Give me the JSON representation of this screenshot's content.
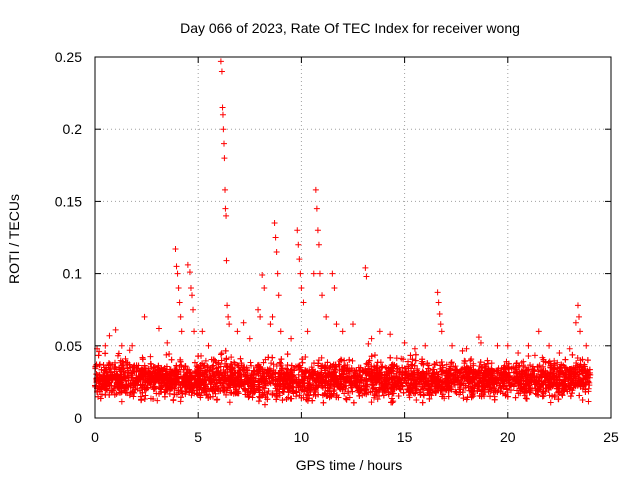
{
  "chart_data": {
    "type": "scatter",
    "title": "Day 066 of 2023, Rate Of TEC Index for receiver wong",
    "xlabel": "GPS time / hours",
    "ylabel": "ROTI / TECUs",
    "xlim": [
      0,
      25
    ],
    "ylim": [
      0,
      0.25
    ],
    "xticks": [
      0,
      5,
      10,
      15,
      20,
      25
    ],
    "yticks": [
      0,
      0.05,
      0.1,
      0.15,
      0.2,
      0.25
    ],
    "xtick_labels": [
      "0",
      "5",
      "10",
      "15",
      "20",
      "25"
    ],
    "ytick_labels": [
      "0",
      "0.05",
      "0.1",
      "0.15",
      "0.2",
      "0.25"
    ],
    "grid": true,
    "marker": "+",
    "color": "#ff0000",
    "series": [
      {
        "name": "ROTI",
        "baseline_band": {
          "x_range": [
            0,
            24
          ],
          "y_range": [
            0.008,
            0.045
          ]
        },
        "points": [
          [
            0.1,
            0.048
          ],
          [
            0.2,
            0.046
          ],
          [
            0.5,
            0.05
          ],
          [
            0.7,
            0.057
          ],
          [
            1.0,
            0.061
          ],
          [
            1.3,
            0.05
          ],
          [
            1.8,
            0.05
          ],
          [
            2.4,
            0.07
          ],
          [
            3.1,
            0.062
          ],
          [
            3.5,
            0.052
          ],
          [
            3.9,
            0.117
          ],
          [
            3.95,
            0.105
          ],
          [
            4.0,
            0.1
          ],
          [
            4.05,
            0.09
          ],
          [
            4.1,
            0.08
          ],
          [
            4.15,
            0.07
          ],
          [
            4.2,
            0.06
          ],
          [
            4.5,
            0.106
          ],
          [
            4.6,
            0.101
          ],
          [
            4.65,
            0.09
          ],
          [
            4.7,
            0.085
          ],
          [
            4.75,
            0.075
          ],
          [
            4.8,
            0.06
          ],
          [
            5.2,
            0.06
          ],
          [
            5.5,
            0.05
          ],
          [
            6.1,
            0.247
          ],
          [
            6.15,
            0.24
          ],
          [
            6.18,
            0.215
          ],
          [
            6.2,
            0.21
          ],
          [
            6.22,
            0.2
          ],
          [
            6.25,
            0.19
          ],
          [
            6.27,
            0.18
          ],
          [
            6.3,
            0.158
          ],
          [
            6.32,
            0.145
          ],
          [
            6.35,
            0.14
          ],
          [
            6.37,
            0.109
          ],
          [
            6.4,
            0.078
          ],
          [
            6.45,
            0.07
          ],
          [
            6.5,
            0.065
          ],
          [
            6.9,
            0.06
          ],
          [
            7.2,
            0.066
          ],
          [
            7.5,
            0.055
          ],
          [
            7.9,
            0.075
          ],
          [
            8.0,
            0.07
          ],
          [
            8.1,
            0.099
          ],
          [
            8.2,
            0.09
          ],
          [
            8.5,
            0.065
          ],
          [
            8.6,
            0.07
          ],
          [
            8.7,
            0.135
          ],
          [
            8.75,
            0.125
          ],
          [
            8.8,
            0.115
          ],
          [
            8.85,
            0.1
          ],
          [
            8.9,
            0.085
          ],
          [
            9.0,
            0.06
          ],
          [
            9.5,
            0.055
          ],
          [
            9.8,
            0.13
          ],
          [
            9.85,
            0.12
          ],
          [
            9.9,
            0.11
          ],
          [
            9.95,
            0.1
          ],
          [
            10.0,
            0.09
          ],
          [
            10.1,
            0.08
          ],
          [
            10.3,
            0.06
          ],
          [
            10.6,
            0.1
          ],
          [
            10.7,
            0.158
          ],
          [
            10.75,
            0.145
          ],
          [
            10.8,
            0.13
          ],
          [
            10.85,
            0.12
          ],
          [
            10.9,
            0.1
          ],
          [
            11.0,
            0.085
          ],
          [
            11.2,
            0.07
          ],
          [
            11.5,
            0.1
          ],
          [
            11.6,
            0.09
          ],
          [
            11.7,
            0.065
          ],
          [
            12.0,
            0.06
          ],
          [
            12.5,
            0.065
          ],
          [
            13.1,
            0.104
          ],
          [
            13.15,
            0.098
          ],
          [
            13.4,
            0.055
          ],
          [
            13.8,
            0.06
          ],
          [
            14.3,
            0.058
          ],
          [
            15.0,
            0.052
          ],
          [
            15.5,
            0.048
          ],
          [
            16.0,
            0.05
          ],
          [
            16.6,
            0.087
          ],
          [
            16.65,
            0.08
          ],
          [
            16.7,
            0.072
          ],
          [
            16.75,
            0.065
          ],
          [
            16.8,
            0.06
          ],
          [
            17.3,
            0.05
          ],
          [
            18.0,
            0.048
          ],
          [
            18.6,
            0.056
          ],
          [
            18.7,
            0.052
          ],
          [
            19.5,
            0.05
          ],
          [
            20.0,
            0.05
          ],
          [
            20.5,
            0.045
          ],
          [
            21.0,
            0.05
          ],
          [
            21.5,
            0.06
          ],
          [
            22.0,
            0.05
          ],
          [
            22.5,
            0.045
          ],
          [
            23.0,
            0.048
          ],
          [
            23.3,
            0.066
          ],
          [
            23.4,
            0.078
          ],
          [
            23.45,
            0.07
          ],
          [
            23.5,
            0.06
          ],
          [
            23.8,
            0.05
          ]
        ]
      }
    ]
  }
}
